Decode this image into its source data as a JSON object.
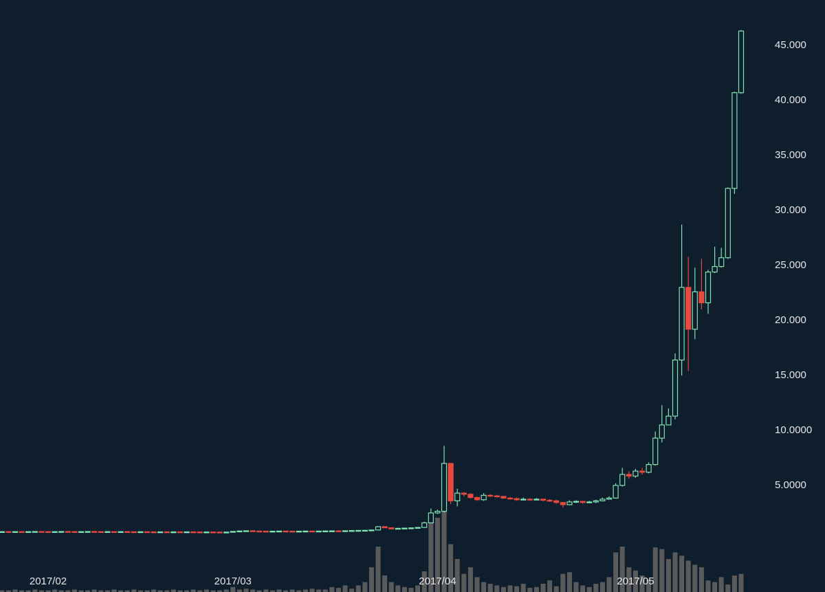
{
  "chart_data": {
    "type": "candlestick",
    "up_color": "#7fe3b4",
    "down_color": "#e8483d",
    "volume_color": "#5a5a5a",
    "background": "#0f1e2d",
    "grid": false,
    "categories": [
      null,
      null,
      null,
      null,
      null,
      null,
      null,
      "2017/02",
      null,
      null,
      null,
      null,
      null,
      null,
      null,
      null,
      null,
      null,
      null,
      null,
      null,
      null,
      null,
      null,
      null,
      null,
      null,
      null,
      null,
      null,
      null,
      null,
      null,
      null,
      null,
      "2017/03",
      null,
      null,
      null,
      null,
      null,
      null,
      null,
      null,
      null,
      null,
      null,
      null,
      null,
      null,
      null,
      null,
      null,
      null,
      null,
      null,
      null,
      null,
      null,
      null,
      null,
      null,
      null,
      null,
      null,
      null,
      "2017/04",
      null,
      null,
      null,
      null,
      null,
      null,
      null,
      null,
      null,
      null,
      null,
      null,
      null,
      null,
      null,
      null,
      null,
      null,
      null,
      null,
      null,
      null,
      null,
      null,
      null,
      null,
      null,
      null,
      null,
      "2017/05",
      null,
      null,
      null,
      null,
      null,
      null,
      null,
      null,
      null,
      null,
      null,
      null,
      null,
      null,
      null,
      null
    ],
    "open": [
      0.8,
      0.8,
      0.79,
      0.8,
      0.79,
      0.8,
      0.81,
      0.8,
      0.79,
      0.8,
      0.81,
      0.8,
      0.79,
      0.8,
      0.81,
      0.8,
      0.79,
      0.8,
      0.79,
      0.8,
      0.79,
      0.78,
      0.79,
      0.78,
      0.77,
      0.78,
      0.77,
      0.78,
      0.77,
      0.78,
      0.77,
      0.76,
      0.77,
      0.76,
      0.75,
      0.76,
      0.82,
      0.86,
      0.88,
      0.85,
      0.84,
      0.83,
      0.84,
      0.85,
      0.84,
      0.83,
      0.84,
      0.85,
      0.84,
      0.85,
      0.86,
      0.87,
      0.86,
      0.88,
      0.9,
      0.91,
      0.92,
      0.95,
      1.25,
      1.15,
      1.05,
      1.1,
      1.12,
      1.14,
      1.18,
      1.6,
      2.5,
      2.65,
      7.0,
      3.6,
      4.3,
      4.2,
      3.9,
      3.7,
      4.1,
      4.05,
      4.0,
      3.85,
      3.8,
      3.7,
      3.75,
      3.7,
      3.75,
      3.65,
      3.6,
      3.45,
      3.25,
      3.5,
      3.55,
      3.45,
      3.5,
      3.6,
      3.75,
      3.85,
      5.0,
      6.0,
      5.85,
      6.3,
      6.2,
      6.9,
      9.3,
      10.5,
      11.3,
      16.4,
      23.0,
      19.2,
      22.6,
      21.6,
      24.4,
      24.9,
      25.7,
      32.0,
      40.7
    ],
    "high": [
      0.81,
      0.81,
      0.81,
      0.81,
      0.81,
      0.82,
      0.82,
      0.81,
      0.81,
      0.82,
      0.82,
      0.81,
      0.81,
      0.82,
      0.82,
      0.81,
      0.81,
      0.81,
      0.81,
      0.81,
      0.8,
      0.8,
      0.8,
      0.79,
      0.79,
      0.79,
      0.79,
      0.79,
      0.79,
      0.79,
      0.78,
      0.78,
      0.78,
      0.77,
      0.77,
      0.84,
      0.88,
      0.9,
      0.89,
      0.86,
      0.85,
      0.85,
      0.86,
      0.86,
      0.85,
      0.85,
      0.86,
      0.86,
      0.86,
      0.87,
      0.88,
      0.88,
      0.89,
      0.92,
      0.93,
      0.94,
      0.97,
      1.3,
      1.28,
      1.17,
      1.13,
      1.15,
      1.17,
      1.22,
      1.7,
      2.9,
      2.8,
      8.6,
      7.0,
      4.7,
      4.4,
      4.3,
      4.0,
      4.3,
      4.2,
      4.15,
      4.05,
      3.95,
      3.9,
      3.9,
      3.85,
      3.85,
      3.8,
      3.75,
      3.7,
      3.5,
      3.65,
      3.65,
      3.6,
      3.6,
      3.7,
      3.9,
      4.0,
      5.2,
      6.6,
      6.3,
      6.5,
      6.6,
      7.1,
      9.9,
      12.3,
      12.0,
      17.0,
      28.7,
      25.8,
      24.8,
      25.6,
      24.6,
      26.7,
      26.6,
      32.1,
      40.8,
      46.4
    ],
    "low": [
      0.78,
      0.78,
      0.78,
      0.78,
      0.78,
      0.79,
      0.79,
      0.78,
      0.78,
      0.79,
      0.79,
      0.78,
      0.78,
      0.79,
      0.79,
      0.78,
      0.78,
      0.78,
      0.78,
      0.78,
      0.77,
      0.77,
      0.77,
      0.76,
      0.76,
      0.76,
      0.76,
      0.76,
      0.76,
      0.76,
      0.75,
      0.75,
      0.75,
      0.74,
      0.74,
      0.75,
      0.81,
      0.85,
      0.84,
      0.83,
      0.82,
      0.82,
      0.83,
      0.83,
      0.82,
      0.82,
      0.83,
      0.83,
      0.83,
      0.84,
      0.85,
      0.85,
      0.85,
      0.87,
      0.89,
      0.9,
      0.91,
      0.93,
      1.12,
      1.02,
      1.04,
      1.09,
      1.11,
      1.13,
      1.15,
      1.55,
      2.4,
      2.55,
      3.3,
      3.1,
      4.0,
      3.8,
      3.6,
      3.6,
      3.95,
      3.9,
      3.8,
      3.7,
      3.6,
      3.65,
      3.6,
      3.65,
      3.55,
      3.5,
      3.35,
      3.0,
      3.2,
      3.4,
      3.35,
      3.4,
      3.4,
      3.55,
      3.7,
      3.8,
      4.9,
      5.6,
      5.7,
      6.0,
      6.1,
      6.8,
      8.9,
      10.8,
      11.0,
      15.0,
      15.4,
      18.3,
      21.0,
      20.6,
      24.3,
      24.8,
      25.6,
      31.5,
      40.6
    ],
    "close": [
      0.8,
      0.79,
      0.8,
      0.79,
      0.8,
      0.81,
      0.8,
      0.79,
      0.8,
      0.81,
      0.8,
      0.79,
      0.8,
      0.81,
      0.8,
      0.79,
      0.8,
      0.79,
      0.8,
      0.79,
      0.78,
      0.79,
      0.78,
      0.77,
      0.78,
      0.77,
      0.78,
      0.77,
      0.78,
      0.77,
      0.76,
      0.77,
      0.76,
      0.75,
      0.76,
      0.82,
      0.86,
      0.88,
      0.85,
      0.84,
      0.83,
      0.84,
      0.85,
      0.84,
      0.83,
      0.84,
      0.85,
      0.84,
      0.85,
      0.86,
      0.87,
      0.86,
      0.88,
      0.9,
      0.91,
      0.92,
      0.95,
      1.25,
      1.15,
      1.05,
      1.1,
      1.12,
      1.14,
      1.18,
      1.6,
      2.5,
      2.65,
      7.0,
      3.6,
      4.3,
      4.2,
      3.9,
      3.7,
      4.1,
      4.05,
      4.0,
      3.85,
      3.8,
      3.7,
      3.75,
      3.7,
      3.75,
      3.65,
      3.6,
      3.45,
      3.25,
      3.5,
      3.55,
      3.45,
      3.5,
      3.6,
      3.75,
      3.85,
      5.0,
      6.0,
      5.85,
      6.3,
      6.2,
      6.9,
      9.3,
      10.5,
      11.3,
      16.4,
      23.0,
      19.2,
      22.6,
      21.6,
      24.4,
      24.9,
      25.7,
      32.0,
      40.7,
      46.3
    ],
    "volume": [
      2,
      2,
      3,
      2,
      2,
      3,
      2,
      2,
      3,
      2,
      2,
      3,
      2,
      2,
      3,
      2,
      2,
      3,
      2,
      2,
      3,
      2,
      2,
      3,
      2,
      2,
      3,
      2,
      2,
      3,
      2,
      3,
      2,
      2,
      3,
      6,
      3,
      4,
      3,
      2,
      3,
      2,
      3,
      2,
      3,
      2,
      3,
      4,
      3,
      3,
      6,
      5,
      8,
      4,
      8,
      12,
      30,
      55,
      20,
      12,
      8,
      6,
      5,
      8,
      25,
      84,
      90,
      102,
      58,
      40,
      22,
      30,
      18,
      12,
      10,
      8,
      6,
      8,
      7,
      10,
      5,
      6,
      10,
      14,
      7,
      22,
      24,
      12,
      8,
      6,
      10,
      12,
      18,
      48,
      55,
      30,
      26,
      20,
      15,
      54,
      52,
      40,
      48,
      44,
      38,
      33,
      30,
      14,
      12,
      18,
      9,
      20,
      22
    ],
    "ylim": [
      -4.6875,
      49.125
    ],
    "yticks": [
      {
        "value": 5,
        "label": "5.0000"
      },
      {
        "value": 10,
        "label": "10.0000"
      },
      {
        "value": 15,
        "label": "15.000"
      },
      {
        "value": 20,
        "label": "20.000"
      },
      {
        "value": 25,
        "label": "25.000"
      },
      {
        "value": 30,
        "label": "30.000"
      },
      {
        "value": 35,
        "label": "35.000"
      },
      {
        "value": 40,
        "label": "40.000"
      },
      {
        "value": 45,
        "label": "45.000"
      }
    ],
    "vlim": [
      0,
      120
    ]
  }
}
